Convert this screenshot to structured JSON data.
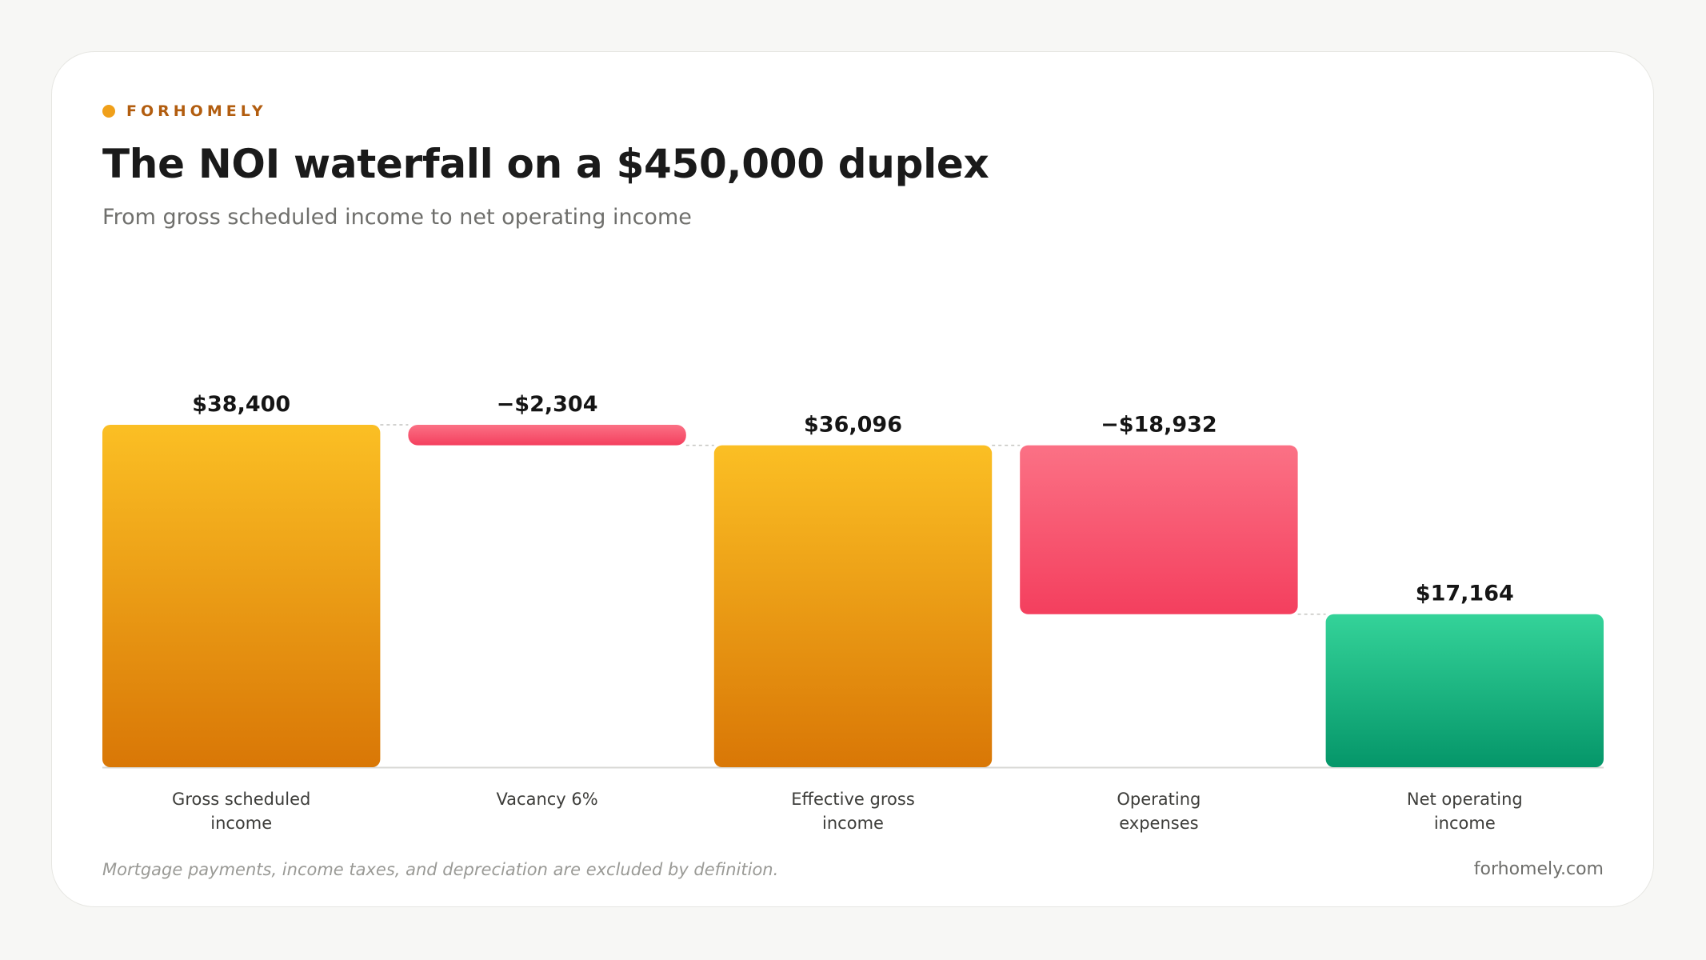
{
  "brand": {
    "name": "FORHOMELY",
    "dot_color": "#f0a01a"
  },
  "header": {
    "title": "The NOI waterfall on a $450,000 duplex",
    "subtitle": "From gross scheduled income to net operating income"
  },
  "chart_data": {
    "type": "bar",
    "variant": "waterfall",
    "categories": [
      [
        "Gross scheduled",
        "income"
      ],
      [
        "Vacancy 6%"
      ],
      [
        "Effective gross",
        "income"
      ],
      [
        "Operating",
        "expenses"
      ],
      [
        "Net operating",
        "income"
      ]
    ],
    "steps": [
      {
        "kind": "total",
        "value": 38400,
        "label": "$38,400"
      },
      {
        "kind": "decrease",
        "value": -2304,
        "label": "−$2,304"
      },
      {
        "kind": "total",
        "value": 36096,
        "label": "$36,096"
      },
      {
        "kind": "decrease",
        "value": -18932,
        "label": "−$18,932"
      },
      {
        "kind": "result",
        "value": 17164,
        "label": "$17,164"
      }
    ],
    "ylim": [
      0,
      38400
    ],
    "grid": false,
    "colors": {
      "total_top": "#fbbf24",
      "total_bottom": "#d97706",
      "decrease_top": "#fb7185",
      "decrease_bottom": "#f43f5e",
      "result_top": "#34d399",
      "result_bottom": "#059669",
      "connector": "#c4c4c0",
      "baseline": "#d9d9d5"
    }
  },
  "footer": {
    "note": "Mortgage payments, income taxes, and depreciation are excluded by definition.",
    "site": "forhomely.com"
  }
}
